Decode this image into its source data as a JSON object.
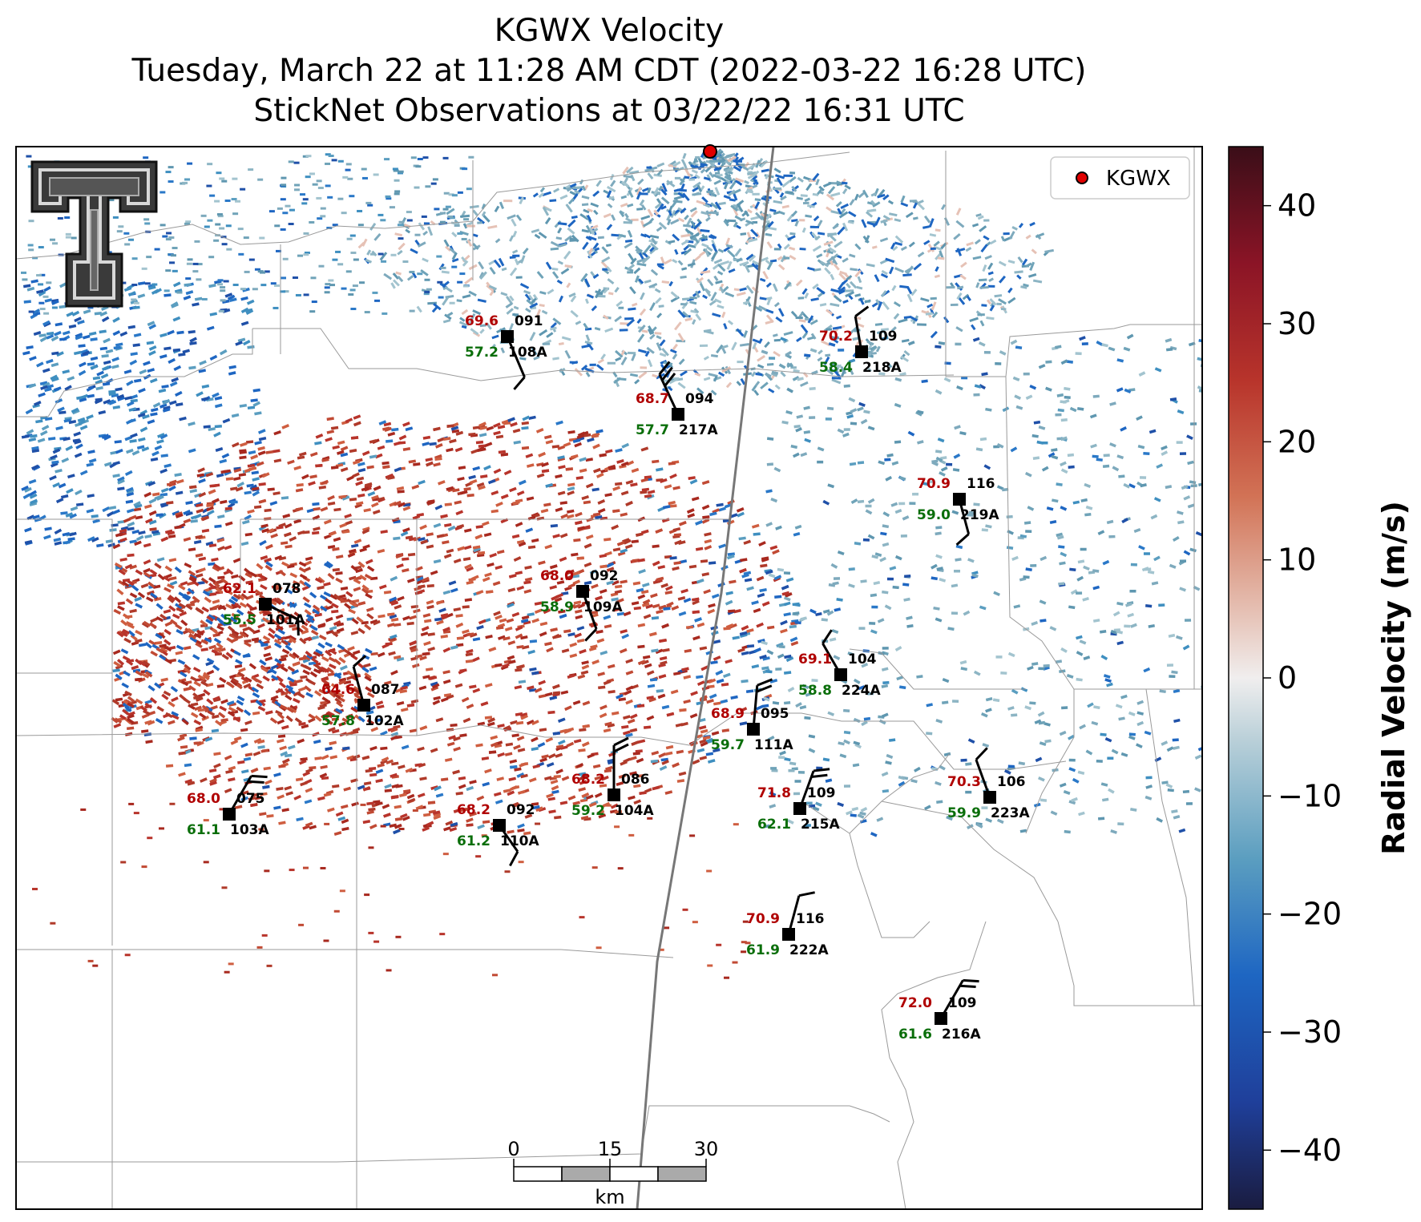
{
  "title": {
    "line1": "KGWX Velocity",
    "line2": "Tuesday, March 22 at 11:28 AM CDT (2022-03-22 16:28 UTC)",
    "line3": "StickNet Observations at 03/22/22 16:31 UTC"
  },
  "legend": {
    "label": "KGWX",
    "marker_color": "#e00000"
  },
  "colorbar": {
    "label": "Radial Velocity (m/s)",
    "ticks": [
      "40",
      "30",
      "20",
      "10",
      "0",
      "−10",
      "−20",
      "−30",
      "−40"
    ],
    "range": [
      -45,
      45
    ]
  },
  "scale_bar": {
    "ticks": [
      "0",
      "15",
      "30"
    ],
    "unit": "km"
  },
  "logo": "texas-tech-double-t-logo",
  "stations": [
    {
      "id": "108A",
      "temp": "69.6",
      "dew": "57.2",
      "pres": "091"
    },
    {
      "id": "218A",
      "temp": "70.2",
      "dew": "58.4",
      "pres": "109"
    },
    {
      "id": "217A",
      "temp": "68.7",
      "dew": "57.7",
      "pres": "094"
    },
    {
      "id": "219A",
      "temp": "70.9",
      "dew": "59.0",
      "pres": "116"
    },
    {
      "id": "109A",
      "temp": "68.0",
      "dew": "58.9",
      "pres": "092"
    },
    {
      "id": "101A",
      "temp": "62.1",
      "dew": "55.5",
      "pres": "078"
    },
    {
      "id": "224A",
      "temp": "69.1",
      "dew": "58.8",
      "pres": "104"
    },
    {
      "id": "102A",
      "temp": "64.6",
      "dew": "57.8",
      "pres": "087"
    },
    {
      "id": "111A",
      "temp": "68.9",
      "dew": "59.7",
      "pres": "095"
    },
    {
      "id": "104A",
      "temp": "68.2",
      "dew": "59.2",
      "pres": "086"
    },
    {
      "id": "215A",
      "temp": "71.8",
      "dew": "62.1",
      "pres": "109"
    },
    {
      "id": "223A",
      "temp": "70.3",
      "dew": "59.9",
      "pres": "106"
    },
    {
      "id": "103A",
      "temp": "68.0",
      "dew": "61.1",
      "pres": "075"
    },
    {
      "id": "110A",
      "temp": "68.2",
      "dew": "61.2",
      "pres": "092"
    },
    {
      "id": "222A",
      "temp": "70.9",
      "dew": "61.9",
      "pres": "116"
    },
    {
      "id": "216A",
      "temp": "72.0",
      "dew": "61.6",
      "pres": "109"
    }
  ]
}
